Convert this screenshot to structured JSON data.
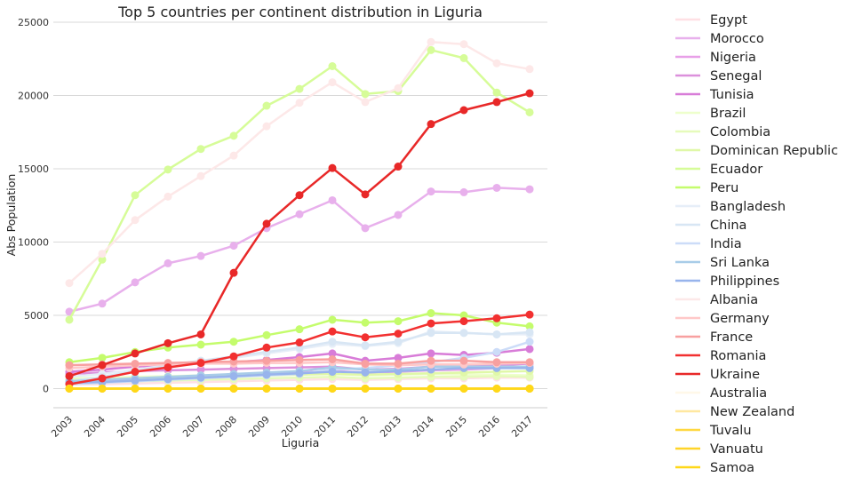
{
  "chart_data": {
    "type": "line",
    "title": "Top 5 countries per continent distribution in Liguria",
    "xlabel": "Liguria",
    "ylabel": "Abs Population",
    "categories": [
      "2003",
      "2004",
      "2005",
      "2006",
      "2007",
      "2008",
      "2009",
      "2010",
      "2011",
      "2012",
      "2013",
      "2014",
      "2015",
      "2016",
      "2017"
    ],
    "ylim": [
      -1300,
      25000
    ],
    "yticks": [
      0,
      5000,
      10000,
      15000,
      20000,
      25000
    ],
    "grid": "horizontal",
    "legend_position": "right",
    "series": [
      {
        "name": "Egypt",
        "color": "#ffe0e4",
        "values": [
          300,
          300,
          350,
          400,
          450,
          500,
          550,
          600,
          650,
          600,
          650,
          700,
          700,
          750,
          750
        ]
      },
      {
        "name": "Morocco",
        "color": "#e8b0ec",
        "values": [
          5250,
          5800,
          7250,
          8550,
          9050,
          9750,
          10950,
          11900,
          12850,
          10950,
          11850,
          13450,
          13400,
          13700,
          13600
        ]
      },
      {
        "name": "Nigeria",
        "color": "#e8a0e8",
        "values": [
          400,
          500,
          600,
          700,
          800,
          900,
          1000,
          1100,
          1200,
          1100,
          1150,
          1250,
          1300,
          1400,
          1450
        ]
      },
      {
        "name": "Senegal",
        "color": "#dc90dc",
        "values": [
          1000,
          1100,
          1200,
          1250,
          1300,
          1350,
          1400,
          1450,
          1500,
          1300,
          1350,
          1500,
          1550,
          1600,
          1700
        ]
      },
      {
        "name": "Tunisia",
        "color": "#d87cd8",
        "values": [
          1150,
          1300,
          1500,
          1600,
          1700,
          1800,
          1950,
          2150,
          2400,
          1900,
          2100,
          2400,
          2300,
          2450,
          2700
        ]
      },
      {
        "name": "Brazil",
        "color": "#eeffcc",
        "values": [
          700,
          750,
          800,
          850,
          900,
          900,
          950,
          1000,
          1000,
          900,
          950,
          1000,
          950,
          950,
          900
        ]
      },
      {
        "name": "Colombia",
        "color": "#e6fbbb",
        "values": [
          400,
          450,
          500,
          550,
          600,
          650,
          700,
          750,
          800,
          700,
          750,
          800,
          800,
          850,
          800
        ]
      },
      {
        "name": "Dominican Republic",
        "color": "#e0f8a8",
        "values": [
          600,
          650,
          700,
          750,
          800,
          850,
          900,
          950,
          1000,
          950,
          1000,
          1050,
          1100,
          1150,
          1200
        ]
      },
      {
        "name": "Ecuador",
        "color": "#d6fc98",
        "values": [
          4700,
          8800,
          13200,
          14950,
          16350,
          17250,
          19300,
          20450,
          22000,
          20100,
          20300,
          23100,
          22550,
          20200,
          18850
        ]
      },
      {
        "name": "Peru",
        "color": "#c4fc6c",
        "values": [
          1800,
          2100,
          2500,
          2800,
          3000,
          3200,
          3650,
          4050,
          4700,
          4500,
          4600,
          5150,
          5000,
          4500,
          4250
        ]
      },
      {
        "name": "Bangladesh",
        "color": "#e6eef8",
        "values": [
          800,
          1000,
          1300,
          1600,
          1900,
          2100,
          2400,
          2700,
          3050,
          2900,
          3100,
          3900,
          3800,
          3700,
          3700
        ]
      },
      {
        "name": "China",
        "color": "#d8e6f4",
        "values": [
          500,
          800,
          1200,
          1600,
          1900,
          2200,
          2500,
          2800,
          3200,
          2950,
          3200,
          3800,
          3800,
          3700,
          3850
        ]
      },
      {
        "name": "India",
        "color": "#ccdcf8",
        "values": [
          300,
          400,
          500,
          600,
          700,
          800,
          900,
          1000,
          1300,
          1400,
          1600,
          1800,
          2100,
          2500,
          3200
        ]
      },
      {
        "name": "Sri Lanka",
        "color": "#a8cce8",
        "values": [
          500,
          600,
          700,
          800,
          900,
          1000,
          1100,
          1200,
          1450,
          1300,
          1300,
          1500,
          1500,
          1500,
          1500
        ]
      },
      {
        "name": "Philippines",
        "color": "#98b4ec",
        "values": [
          400,
          450,
          550,
          650,
          750,
          850,
          950,
          1050,
          1150,
          1100,
          1200,
          1300,
          1400,
          1400,
          1400
        ]
      },
      {
        "name": "Albania",
        "color": "#fde8e8",
        "values": [
          7200,
          9200,
          11500,
          13100,
          14500,
          15900,
          17900,
          19500,
          20900,
          19550,
          20500,
          23650,
          23500,
          22200,
          21800
        ]
      },
      {
        "name": "Germany",
        "color": "#ffc8c8",
        "values": [
          1400,
          1500,
          1600,
          1650,
          1700,
          1700,
          1750,
          1750,
          1800,
          1650,
          1600,
          1650,
          1650,
          1700,
          1750
        ]
      },
      {
        "name": "France",
        "color": "#f8a0a0",
        "values": [
          1600,
          1650,
          1700,
          1750,
          1800,
          1850,
          1900,
          1950,
          2000,
          1700,
          1700,
          1900,
          1900,
          1800,
          1800
        ]
      },
      {
        "name": "Romania",
        "color": "#f23030",
        "values": [
          300,
          700,
          1150,
          1450,
          1750,
          2200,
          2800,
          3150,
          3900,
          3500,
          3750,
          4450,
          4600,
          4800,
          5050
        ]
      },
      {
        "name": "Ukraine",
        "color": "#e82828",
        "values": [
          850,
          1600,
          2400,
          3100,
          3700,
          7900,
          11250,
          13200,
          15050,
          13250,
          15150,
          18050,
          19000,
          19550,
          20150
        ]
      },
      {
        "name": "Australia",
        "color": "#fff8e8",
        "values": [
          10,
          10,
          10,
          10,
          10,
          10,
          10,
          10,
          10,
          10,
          10,
          10,
          10,
          10,
          10
        ]
      },
      {
        "name": "New Zealand",
        "color": "#ffe8a0",
        "values": [
          5,
          5,
          5,
          5,
          5,
          5,
          5,
          5,
          5,
          5,
          5,
          5,
          5,
          5,
          5
        ]
      },
      {
        "name": "Tuvalu",
        "color": "#ffd840",
        "values": [
          0,
          0,
          0,
          0,
          0,
          0,
          0,
          0,
          0,
          0,
          0,
          0,
          0,
          0,
          0
        ]
      },
      {
        "name": "Vanuatu",
        "color": "#ffd428",
        "values": [
          0,
          0,
          0,
          0,
          0,
          0,
          0,
          0,
          0,
          0,
          0,
          0,
          0,
          0,
          0
        ]
      },
      {
        "name": "Samoa",
        "color": "#ffd818",
        "values": [
          0,
          0,
          0,
          0,
          0,
          0,
          0,
          0,
          0,
          0,
          0,
          0,
          0,
          0,
          0
        ]
      }
    ]
  }
}
